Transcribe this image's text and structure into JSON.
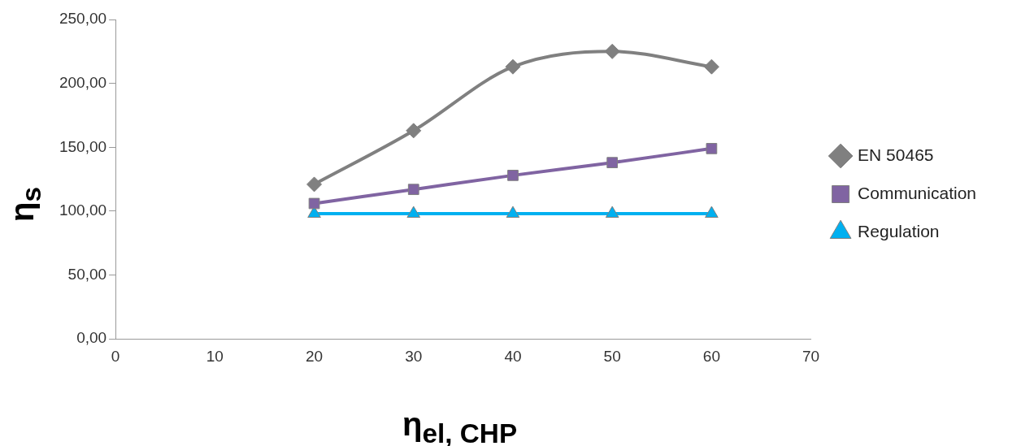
{
  "chart_data": {
    "type": "line",
    "xlabel": "η$_{el, CHP}$",
    "ylabel": "η$_{s}$",
    "xlim": [
      0,
      70
    ],
    "xticks": [
      0,
      10,
      20,
      30,
      40,
      50,
      60,
      70
    ],
    "ylim": [
      0,
      250
    ],
    "yticks": [
      {
        "value": 0,
        "label": "0,00"
      },
      {
        "value": 50,
        "label": "50,00"
      },
      {
        "value": 100,
        "label": "100,00"
      },
      {
        "value": 150,
        "label": "150,00"
      },
      {
        "value": 200,
        "label": "200,00"
      },
      {
        "value": 250,
        "label": "250,00"
      }
    ],
    "x": [
      20,
      30,
      40,
      50,
      60
    ],
    "series": [
      {
        "name": "EN 50465",
        "color": "#808080",
        "marker": "diamond",
        "values": [
          121,
          163,
          213,
          225,
          213
        ]
      },
      {
        "name": "Communication",
        "color": "#8064a2",
        "marker": "square",
        "values": [
          106,
          117,
          128,
          138,
          149
        ]
      },
      {
        "name": "Regulation",
        "color": "#00b0f0",
        "marker": "triangle",
        "values": [
          98,
          98,
          98,
          98,
          98
        ]
      }
    ],
    "legend": "right",
    "grid": false
  }
}
